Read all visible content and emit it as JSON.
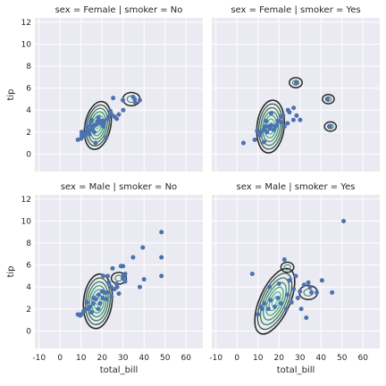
{
  "chart_data": {
    "type": "scatter",
    "style": {
      "background": "#EAEAF2",
      "grid_color": "#ffffff",
      "point_color": "#4C72B0",
      "contour_colors": [
        "#2b2b2b",
        "#3a5a4a",
        "#3d7a5f",
        "#3f956a",
        "#4aa878",
        "#5ab88a",
        "#6cc49a"
      ],
      "grid": true
    },
    "shared": {
      "xlabel": "total_bill",
      "ylabel": "tip",
      "xlim": [
        -12,
        68
      ],
      "ylim": [
        -1.6,
        12.4
      ],
      "xticks": [
        -10,
        0,
        10,
        20,
        30,
        40,
        50,
        60
      ],
      "yticks": [
        0,
        2,
        4,
        6,
        8,
        10,
        12
      ]
    },
    "panels": [
      {
        "title": "sex = Female | smoker = No",
        "row": 0,
        "col": 0,
        "points": [
          [
            16.9,
            1.0
          ],
          [
            24.6,
            3.6
          ],
          [
            10.3,
            1.7
          ],
          [
            14.8,
            3.0
          ],
          [
            10.3,
            2.0
          ],
          [
            15.0,
            3.1
          ],
          [
            13.0,
            2.0
          ],
          [
            17.9,
            3.0
          ],
          [
            14.8,
            2.2
          ],
          [
            20.3,
            2.6
          ],
          [
            18.4,
            3.0
          ],
          [
            12.5,
            2.5
          ],
          [
            14.3,
            2.6
          ],
          [
            18.3,
            3.3
          ],
          [
            16.3,
            2.0
          ],
          [
            20.7,
            2.5
          ],
          [
            12.7,
            2.0
          ],
          [
            13.4,
            2.2
          ],
          [
            15.4,
            2.5
          ],
          [
            10.7,
            1.8
          ],
          [
            18.0,
            3.0
          ],
          [
            19.8,
            3.0
          ],
          [
            22.8,
            3.2
          ],
          [
            15.6,
            2.4
          ],
          [
            13.0,
            2.0
          ],
          [
            23.1,
            3.4
          ],
          [
            11.4,
            1.6
          ],
          [
            17.5,
            2.7
          ],
          [
            20.9,
            2.8
          ],
          [
            28.0,
            3.6
          ],
          [
            25.3,
            5.1
          ],
          [
            29.9,
            4.9
          ],
          [
            35.8,
            4.7
          ],
          [
            38.0,
            4.9
          ],
          [
            34.8,
            5.2
          ],
          [
            35.5,
            5.0
          ],
          [
            30.1,
            4.0
          ],
          [
            22.0,
            1.5
          ],
          [
            10.0,
            1.4
          ],
          [
            8.5,
            1.3
          ],
          [
            27.0,
            3.2
          ],
          [
            24.0,
            3.9
          ],
          [
            19.5,
            2.8
          ],
          [
            21.0,
            3.0
          ],
          [
            16.4,
            2.6
          ],
          [
            14.0,
            1.8
          ],
          [
            12.2,
            1.9
          ],
          [
            26.0,
            3.4
          ]
        ],
        "density": {
          "center": [
            18,
            2.6
          ],
          "spread": [
            5.5,
            0.9
          ],
          "tilt": 0.1,
          "blobs": [
            [
              34,
              5.0,
              0.55
            ]
          ]
        }
      },
      {
        "title": "sex = Female | smoker = Yes",
        "row": 0,
        "col": 1,
        "points": [
          [
            3.1,
            1.0
          ],
          [
            8.5,
            1.3
          ],
          [
            12.9,
            1.1
          ],
          [
            15.0,
            2.5
          ],
          [
            11.6,
            2.0
          ],
          [
            13.4,
            2.5
          ],
          [
            17.5,
            2.2
          ],
          [
            19.4,
            3.0
          ],
          [
            22.0,
            3.5
          ],
          [
            24.3,
            4.0
          ],
          [
            28.2,
            6.5
          ],
          [
            26.9,
            3.1
          ],
          [
            18.3,
            2.5
          ],
          [
            13.9,
            3.0
          ],
          [
            16.3,
            3.7
          ],
          [
            10.6,
            2.0
          ],
          [
            20.9,
            3.4
          ],
          [
            25.0,
            3.8
          ],
          [
            43.1,
            5.0
          ],
          [
            44.3,
            2.5
          ],
          [
            30.1,
            3.1
          ],
          [
            22.6,
            2.5
          ],
          [
            12.8,
            2.2
          ],
          [
            19.8,
            3.0
          ],
          [
            24.1,
            2.8
          ],
          [
            9.6,
            2.1
          ],
          [
            16.5,
            2.6
          ],
          [
            28.4,
            3.5
          ],
          [
            14.3,
            2.0
          ],
          [
            18.8,
            2.6
          ],
          [
            27.0,
            4.2
          ],
          [
            21.1,
            2.9
          ],
          [
            15.7,
            2.3
          ],
          [
            11.0,
            1.7
          ]
        ],
        "density": {
          "center": [
            16,
            2.5
          ],
          "spread": [
            6.0,
            0.95
          ],
          "tilt": 0.12,
          "blobs": [
            [
              28,
              6.5,
              0.35
            ],
            [
              43.5,
              5.0,
              0.3
            ],
            [
              44.5,
              2.5,
              0.3
            ]
          ]
        }
      },
      {
        "title": "sex = Male | smoker = No",
        "row": 1,
        "col": 0,
        "points": [
          [
            48.3,
            9.0
          ],
          [
            39.4,
            7.6
          ],
          [
            34.8,
            6.7
          ],
          [
            48.3,
            6.7
          ],
          [
            30.0,
            5.9
          ],
          [
            29.0,
            5.9
          ],
          [
            25.0,
            5.7
          ],
          [
            22.7,
            5.0
          ],
          [
            20.6,
            5.0
          ],
          [
            48.3,
            5.0
          ],
          [
            38.0,
            4.0
          ],
          [
            40.0,
            4.7
          ],
          [
            30.1,
            5.0
          ],
          [
            31.0,
            5.2
          ],
          [
            29.9,
            4.8
          ],
          [
            31.0,
            4.5
          ],
          [
            26.9,
            4.3
          ],
          [
            24.3,
            4.0
          ],
          [
            22.5,
            3.5
          ],
          [
            20.3,
            3.0
          ],
          [
            18.4,
            3.3
          ],
          [
            17.1,
            2.9
          ],
          [
            15.8,
            2.5
          ],
          [
            14.3,
            2.2
          ],
          [
            13.4,
            2.0
          ],
          [
            12.3,
            2.0
          ],
          [
            11.2,
            1.8
          ],
          [
            10.0,
            1.5
          ],
          [
            9.6,
            1.4
          ],
          [
            8.5,
            1.5
          ],
          [
            19.0,
            2.5
          ],
          [
            21.5,
            3.5
          ],
          [
            24.5,
            3.1
          ],
          [
            27.2,
            4.0
          ],
          [
            16.0,
            3.0
          ],
          [
            22.0,
            2.9
          ],
          [
            20.0,
            3.6
          ],
          [
            12.8,
            2.6
          ],
          [
            15.0,
            1.7
          ],
          [
            28.0,
            3.4
          ],
          [
            23.2,
            4.4
          ],
          [
            18.2,
            2.0
          ],
          [
            25.9,
            3.8
          ]
        ],
        "density": {
          "center": [
            18,
            2.7
          ],
          "spread": [
            6.2,
            1.0
          ],
          "tilt": 0.12,
          "blobs": [
            [
              28,
              4.8,
              0.45
            ]
          ]
        }
      },
      {
        "title": "sex = Male | smoker = Yes",
        "row": 1,
        "col": 1,
        "points": [
          [
            50.8,
            10.0
          ],
          [
            7.3,
            5.2
          ],
          [
            22.6,
            6.5
          ],
          [
            28.0,
            5.0
          ],
          [
            32.0,
            4.2
          ],
          [
            34.0,
            4.4
          ],
          [
            40.5,
            4.6
          ],
          [
            45.3,
            3.5
          ],
          [
            33.0,
            1.2
          ],
          [
            30.6,
            2.0
          ],
          [
            35.5,
            3.5
          ],
          [
            15.5,
            4.0
          ],
          [
            19.5,
            3.0
          ],
          [
            21.0,
            2.5
          ],
          [
            24.0,
            3.3
          ],
          [
            27.0,
            3.8
          ],
          [
            12.0,
            2.0
          ],
          [
            13.0,
            2.5
          ],
          [
            10.0,
            1.5
          ],
          [
            16.0,
            2.8
          ],
          [
            18.0,
            2.2
          ],
          [
            23.5,
            2.0
          ],
          [
            26.0,
            2.6
          ],
          [
            30.0,
            3.6
          ],
          [
            34.8,
            4.0
          ],
          [
            38.0,
            3.5
          ],
          [
            25.0,
            4.6
          ],
          [
            20.0,
            4.3
          ],
          [
            15.0,
            2.0
          ],
          [
            11.3,
            2.2
          ],
          [
            29.0,
            3.0
          ]
        ],
        "density": {
          "center": [
            18,
            2.7
          ],
          "spread": [
            8.0,
            1.05
          ],
          "tilt": 0.06,
          "blobs": [
            [
              34,
              3.5,
              0.6
            ],
            [
              24,
              5.8,
              0.35
            ]
          ]
        }
      }
    ]
  }
}
